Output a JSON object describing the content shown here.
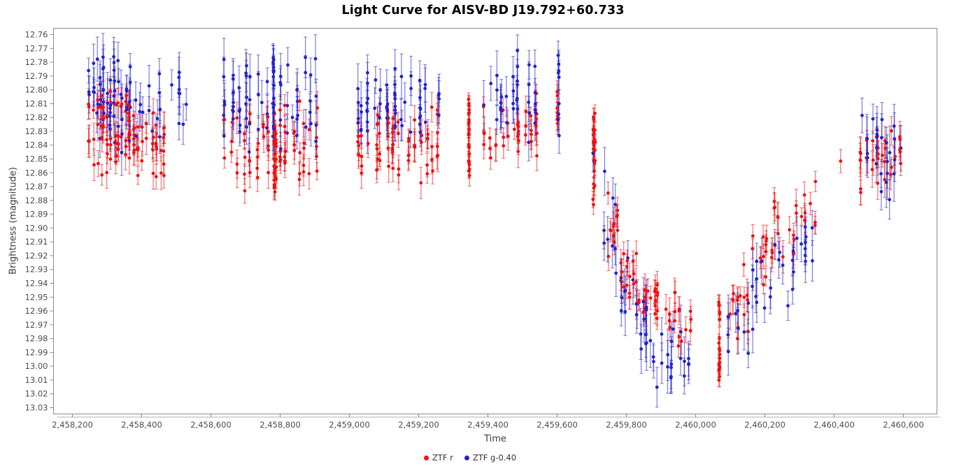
{
  "chart_data": {
    "type": "scatter",
    "title": "Light Curve for AISV-BD J19.792+60.733",
    "xlabel": "Time",
    "ylabel": "Brightness (magnitude)",
    "grid": false,
    "legend_position": "bottom-center",
    "x_axis": {
      "min": 2458146,
      "max": 2460697,
      "ticks": [
        {
          "value": 2458200,
          "label": "2,458,200"
        },
        {
          "value": 2458400,
          "label": "2,458,400"
        },
        {
          "value": 2458600,
          "label": "2,458,600"
        },
        {
          "value": 2458800,
          "label": "2,458,800"
        },
        {
          "value": 2459000,
          "label": "2,459,000"
        },
        {
          "value": 2459200,
          "label": "2,459,200"
        },
        {
          "value": 2459400,
          "label": "2,459,400"
        },
        {
          "value": 2459600,
          "label": "2,459,600"
        },
        {
          "value": 2459800,
          "label": "2,459,800"
        },
        {
          "value": 2460000,
          "label": "2,460,000"
        },
        {
          "value": 2460200,
          "label": "2,460,200"
        },
        {
          "value": 2460400,
          "label": "2,460,400"
        },
        {
          "value": 2460600,
          "label": "2,460,600"
        }
      ]
    },
    "y_axis": {
      "min": 12.755,
      "max": 13.034,
      "inverted": true,
      "tick_step": 0.01,
      "ticks": [
        {
          "value": 12.76,
          "label": "12.76"
        },
        {
          "value": 12.77,
          "label": "12.77"
        },
        {
          "value": 12.78,
          "label": "12.78"
        },
        {
          "value": 12.79,
          "label": "12.79"
        },
        {
          "value": 12.8,
          "label": "12.80"
        },
        {
          "value": 12.81,
          "label": "12.81"
        },
        {
          "value": 12.82,
          "label": "12.82"
        },
        {
          "value": 12.83,
          "label": "12.83"
        },
        {
          "value": 12.84,
          "label": "12.84"
        },
        {
          "value": 12.85,
          "label": "12.85"
        },
        {
          "value": 12.86,
          "label": "12.86"
        },
        {
          "value": 12.87,
          "label": "12.87"
        },
        {
          "value": 12.88,
          "label": "12.88"
        },
        {
          "value": 12.89,
          "label": "12.89"
        },
        {
          "value": 12.9,
          "label": "12.90"
        },
        {
          "value": 12.91,
          "label": "12.91"
        },
        {
          "value": 12.92,
          "label": "12.92"
        },
        {
          "value": 12.93,
          "label": "12.93"
        },
        {
          "value": 12.94,
          "label": "12.94"
        },
        {
          "value": 12.95,
          "label": "12.95"
        },
        {
          "value": 12.96,
          "label": "12.96"
        },
        {
          "value": 12.97,
          "label": "12.97"
        },
        {
          "value": 12.98,
          "label": "12.98"
        },
        {
          "value": 12.99,
          "label": "12.99"
        },
        {
          "value": 13.0,
          "label": "13.00"
        },
        {
          "value": 13.01,
          "label": "13.01"
        },
        {
          "value": 13.02,
          "label": "13.02"
        },
        {
          "value": 13.03,
          "label": "13.03"
        }
      ]
    },
    "legend": [
      {
        "series": "r",
        "label": "ZTF r",
        "color": "#ee1111"
      },
      {
        "series": "g",
        "label": "ZTF g-0.40",
        "color": "#2222cc"
      }
    ],
    "colors": {
      "ztf_r": "#ee1111",
      "ztf_g": "#2222cc",
      "plot_border": "#8c8c8c",
      "tick_text": "#4d4d4d",
      "shadow": "#cccccc"
    },
    "description": "Scatter light curve with error bars; quiescent baseline near mag 12.80-12.86 from JD 2458245-2459710, a deep symmetric dip reaching ~13.02 centered near JD 2459990, recovery by JD 2460350, return to baseline by JD 2460600. ZTF g (shifted -0.40) sits above ZTF r in quiescence but dips deeper during the fade.",
    "clusters": [
      {
        "s": "r",
        "jd": [
          2458245,
          2458370
        ],
        "mag": [
          12.795,
          12.868
        ],
        "n": 65,
        "err": [
          0.006,
          0.012
        ],
        "cols": 12
      },
      {
        "s": "g",
        "jd": [
          2458245,
          2458370
        ],
        "mag": [
          12.762,
          12.848
        ],
        "n": 60,
        "err": [
          0.009,
          0.018
        ],
        "cols": 12
      },
      {
        "s": "r",
        "jd": [
          2458375,
          2458470
        ],
        "mag": [
          12.805,
          12.868
        ],
        "n": 38,
        "err": [
          0.006,
          0.012
        ],
        "cols": 9
      },
      {
        "s": "g",
        "jd": [
          2458375,
          2458460
        ],
        "mag": [
          12.778,
          12.842
        ],
        "n": 14,
        "err": [
          0.009,
          0.016
        ],
        "cols": 7
      },
      {
        "s": "g",
        "jd": [
          2458480,
          2458535
        ],
        "mag": [
          12.785,
          12.838
        ],
        "n": 9,
        "err": [
          0.01,
          0.016
        ],
        "cols": 5
      },
      {
        "s": "r",
        "jd": [
          2458635,
          2458915
        ],
        "mag": [
          12.806,
          12.875
        ],
        "n": 75,
        "err": [
          0.006,
          0.012
        ],
        "cols": 16
      },
      {
        "s": "g",
        "jd": [
          2458635,
          2458915
        ],
        "mag": [
          12.768,
          12.848
        ],
        "n": 68,
        "err": [
          0.009,
          0.018
        ],
        "cols": 16
      },
      {
        "s": "r",
        "jd": [
          2458777,
          2458787
        ],
        "mag": [
          12.815,
          12.875
        ],
        "n": 22,
        "err": [
          0.005,
          0.009
        ],
        "cols": 1
      },
      {
        "s": "g",
        "jd": [
          2458777,
          2458787
        ],
        "mag": [
          12.772,
          12.83
        ],
        "n": 16,
        "err": [
          0.008,
          0.014
        ],
        "cols": 1
      },
      {
        "s": "r",
        "jd": [
          2459012,
          2459265
        ],
        "mag": [
          12.81,
          12.872
        ],
        "n": 70,
        "err": [
          0.006,
          0.012
        ],
        "cols": 14
      },
      {
        "s": "g",
        "jd": [
          2459012,
          2459265
        ],
        "mag": [
          12.778,
          12.846
        ],
        "n": 60,
        "err": [
          0.009,
          0.018
        ],
        "cols": 14
      },
      {
        "s": "r",
        "jd": [
          2459340,
          2459349
        ],
        "mag": [
          12.806,
          12.864
        ],
        "n": 26,
        "err": [
          0.004,
          0.008
        ],
        "cols": 1
      },
      {
        "s": "r",
        "jd": [
          2459386,
          2459545
        ],
        "mag": [
          12.802,
          12.862
        ],
        "n": 40,
        "err": [
          0.006,
          0.012
        ],
        "cols": 10
      },
      {
        "s": "g",
        "jd": [
          2459386,
          2459545
        ],
        "mag": [
          12.768,
          12.844
        ],
        "n": 36,
        "err": [
          0.009,
          0.018
        ],
        "cols": 10
      },
      {
        "s": "g",
        "jd": [
          2459598,
          2459606
        ],
        "mag": [
          12.772,
          12.838
        ],
        "n": 9,
        "err": [
          0.009,
          0.016
        ],
        "cols": 1
      },
      {
        "s": "r",
        "jd": [
          2459598,
          2459606
        ],
        "mag": [
          12.8,
          12.84
        ],
        "n": 7,
        "err": [
          0.006,
          0.01
        ],
        "cols": 1
      },
      {
        "s": "r",
        "jd": [
          2459701,
          2459711
        ],
        "mag": [
          12.817,
          12.888
        ],
        "n": 26,
        "err": [
          0.004,
          0.009
        ],
        "cols": 2
      },
      {
        "s": "g",
        "jd": [
          2459703,
          2459709
        ],
        "mag": [
          12.828,
          12.862
        ],
        "n": 2,
        "err": [
          0.01,
          0.014
        ],
        "cols": 1
      },
      {
        "s": "r",
        "jd": [
          2459730,
          2459778
        ],
        "mag": [
          12.862,
          12.932
        ],
        "n": 14,
        "err": [
          0.006,
          0.012
        ],
        "cols": 5
      },
      {
        "s": "g",
        "jd": [
          2459730,
          2459778
        ],
        "mag": [
          12.856,
          12.948
        ],
        "n": 9,
        "err": [
          0.01,
          0.018
        ],
        "cols": 4
      },
      {
        "s": "r",
        "jd": [
          2459778,
          2459833
        ],
        "mag": [
          12.898,
          12.958
        ],
        "n": 17,
        "err": [
          0.006,
          0.012
        ],
        "cols": 6
      },
      {
        "s": "g",
        "jd": [
          2459778,
          2459833
        ],
        "mag": [
          12.915,
          12.978
        ],
        "n": 12,
        "err": [
          0.01,
          0.018
        ],
        "cols": 5
      },
      {
        "s": "r",
        "jd": [
          2459833,
          2459886
        ],
        "mag": [
          12.922,
          12.978
        ],
        "n": 16,
        "err": [
          0.006,
          0.012
        ],
        "cols": 6
      },
      {
        "s": "g",
        "jd": [
          2459833,
          2459886
        ],
        "mag": [
          12.942,
          13.008
        ],
        "n": 13,
        "err": [
          0.01,
          0.02
        ],
        "cols": 5
      },
      {
        "s": "r",
        "jd": [
          2459886,
          2459946
        ],
        "mag": [
          12.938,
          12.992
        ],
        "n": 13,
        "err": [
          0.006,
          0.012
        ],
        "cols": 5
      },
      {
        "s": "g",
        "jd": [
          2459886,
          2459946
        ],
        "mag": [
          12.958,
          13.026
        ],
        "n": 11,
        "err": [
          0.01,
          0.02
        ],
        "cols": 5
      },
      {
        "s": "r",
        "jd": [
          2459946,
          2459988
        ],
        "mag": [
          12.952,
          13.002
        ],
        "n": 9,
        "err": [
          0.006,
          0.012
        ],
        "cols": 4
      },
      {
        "s": "g",
        "jd": [
          2459946,
          2459988
        ],
        "mag": [
          12.972,
          13.018
        ],
        "n": 7,
        "err": [
          0.01,
          0.02
        ],
        "cols": 3
      },
      {
        "s": "r",
        "jd": [
          2460063,
          2460071
        ],
        "mag": [
          12.953,
          13.012
        ],
        "n": 24,
        "err": [
          0.004,
          0.008
        ],
        "cols": 1
      },
      {
        "s": "r",
        "jd": [
          2460092,
          2460157
        ],
        "mag": [
          12.918,
          12.982
        ],
        "n": 15,
        "err": [
          0.006,
          0.012
        ],
        "cols": 6
      },
      {
        "s": "g",
        "jd": [
          2460092,
          2460157
        ],
        "mag": [
          12.942,
          13.006
        ],
        "n": 11,
        "err": [
          0.01,
          0.018
        ],
        "cols": 5
      },
      {
        "s": "r",
        "jd": [
          2460157,
          2460222
        ],
        "mag": [
          12.892,
          12.952
        ],
        "n": 15,
        "err": [
          0.006,
          0.012
        ],
        "cols": 6
      },
      {
        "s": "g",
        "jd": [
          2460157,
          2460222
        ],
        "mag": [
          12.912,
          12.986
        ],
        "n": 11,
        "err": [
          0.01,
          0.018
        ],
        "cols": 5
      },
      {
        "s": "r",
        "jd": [
          2460222,
          2460287
        ],
        "mag": [
          12.872,
          12.928
        ],
        "n": 12,
        "err": [
          0.006,
          0.012
        ],
        "cols": 5
      },
      {
        "s": "g",
        "jd": [
          2460222,
          2460287
        ],
        "mag": [
          12.892,
          12.962
        ],
        "n": 10,
        "err": [
          0.01,
          0.018
        ],
        "cols": 5
      },
      {
        "s": "r",
        "jd": [
          2460287,
          2460348
        ],
        "mag": [
          12.856,
          12.912
        ],
        "n": 10,
        "err": [
          0.006,
          0.012
        ],
        "cols": 5
      },
      {
        "s": "g",
        "jd": [
          2460287,
          2460348
        ],
        "mag": [
          12.868,
          12.942
        ],
        "n": 10,
        "err": [
          0.01,
          0.018
        ],
        "cols": 5
      },
      {
        "s": "r",
        "jd": [
          2460418,
          2460420
        ],
        "mag": [
          12.849,
          12.853
        ],
        "n": 1,
        "err": [
          0.007,
          0.009
        ],
        "cols": 1
      },
      {
        "s": "r",
        "jd": [
          2460473,
          2460600
        ],
        "mag": [
          12.822,
          12.882
        ],
        "n": 30,
        "err": [
          0.007,
          0.013
        ],
        "cols": 9
      },
      {
        "s": "g",
        "jd": [
          2460473,
          2460600
        ],
        "mag": [
          12.81,
          12.892
        ],
        "n": 26,
        "err": [
          0.01,
          0.02
        ],
        "cols": 9
      }
    ]
  }
}
